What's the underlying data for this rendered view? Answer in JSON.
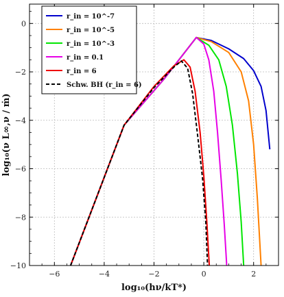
{
  "chart_data": {
    "type": "line",
    "title": "",
    "xlabel": "log₁₀(hν/kT*)",
    "ylabel": "log₁₀(ν L∞,ν / ṁ)",
    "xlim": [
      -7,
      3
    ],
    "ylim": [
      -10,
      0.8
    ],
    "xticks": [
      -6,
      -4,
      -2,
      0,
      2
    ],
    "yticks": [
      -10,
      -8,
      -6,
      -4,
      -2,
      0
    ],
    "grid": true,
    "legend_position": "top-left",
    "series": [
      {
        "name": "r_in = 10^-7",
        "color": "#0000cc",
        "dash": "solid",
        "points": [
          [
            -5.35,
            -10
          ],
          [
            -3.2,
            -4.2
          ],
          [
            -1.6,
            -2.3
          ],
          [
            -0.3,
            -0.58
          ],
          [
            0.3,
            -0.7
          ],
          [
            1.0,
            -1.05
          ],
          [
            1.6,
            -1.45
          ],
          [
            2.0,
            -1.95
          ],
          [
            2.3,
            -2.6
          ],
          [
            2.5,
            -3.6
          ],
          [
            2.65,
            -5.2
          ]
        ]
      },
      {
        "name": "r_in = 10^-5",
        "color": "#ff8000",
        "dash": "solid",
        "points": [
          [
            -5.35,
            -10
          ],
          [
            -3.2,
            -4.2
          ],
          [
            -1.6,
            -2.3
          ],
          [
            -0.3,
            -0.58
          ],
          [
            0.3,
            -0.75
          ],
          [
            1.0,
            -1.2
          ],
          [
            1.5,
            -2.0
          ],
          [
            1.8,
            -3.2
          ],
          [
            2.0,
            -5.0
          ],
          [
            2.15,
            -7.2
          ],
          [
            2.3,
            -10
          ]
        ]
      },
      {
        "name": "r_in = 10^-3",
        "color": "#00e600",
        "dash": "solid",
        "points": [
          [
            -5.35,
            -10
          ],
          [
            -3.2,
            -4.2
          ],
          [
            -1.6,
            -2.3
          ],
          [
            -0.3,
            -0.58
          ],
          [
            0.2,
            -0.9
          ],
          [
            0.6,
            -1.5
          ],
          [
            0.9,
            -2.6
          ],
          [
            1.15,
            -4.2
          ],
          [
            1.35,
            -6.2
          ],
          [
            1.5,
            -8.2
          ],
          [
            1.6,
            -10
          ]
        ]
      },
      {
        "name": "r_in = 0.1",
        "color": "#e600e6",
        "dash": "solid",
        "points": [
          [
            -5.35,
            -10
          ],
          [
            -3.2,
            -4.2
          ],
          [
            -1.6,
            -2.3
          ],
          [
            -0.3,
            -0.58
          ],
          [
            0.0,
            -0.85
          ],
          [
            0.2,
            -1.5
          ],
          [
            0.4,
            -2.8
          ],
          [
            0.55,
            -4.5
          ],
          [
            0.7,
            -6.5
          ],
          [
            0.82,
            -8.3
          ],
          [
            0.92,
            -10
          ]
        ]
      },
      {
        "name": "r_in = 6",
        "color": "#ee0000",
        "dash": "solid",
        "points": [
          [
            -5.35,
            -10
          ],
          [
            -3.2,
            -4.2
          ],
          [
            -2.0,
            -2.6
          ],
          [
            -1.2,
            -1.75
          ],
          [
            -0.8,
            -1.5
          ],
          [
            -0.55,
            -1.8
          ],
          [
            -0.35,
            -2.8
          ],
          [
            -0.15,
            -4.5
          ],
          [
            0.0,
            -6.3
          ],
          [
            0.12,
            -8.2
          ],
          [
            0.22,
            -10
          ]
        ]
      },
      {
        "name": "Schw. BH (r_in = 6)",
        "color": "#000000",
        "dash": "dashed",
        "points": [
          [
            -5.35,
            -10
          ],
          [
            -3.2,
            -4.2
          ],
          [
            -2.0,
            -2.65
          ],
          [
            -1.2,
            -1.8
          ],
          [
            -0.9,
            -1.55
          ],
          [
            -0.65,
            -1.85
          ],
          [
            -0.45,
            -2.9
          ],
          [
            -0.25,
            -4.6
          ],
          [
            -0.05,
            -6.4
          ],
          [
            0.08,
            -8.2
          ],
          [
            0.15,
            -10
          ]
        ]
      }
    ]
  },
  "legend": {
    "entries": [
      "r_in = 10^-7",
      "r_in = 10^-5",
      "r_in = 10^-3",
      "r_in = 0.1",
      "r_in = 6",
      "Schw. BH (r_in = 6)"
    ]
  }
}
